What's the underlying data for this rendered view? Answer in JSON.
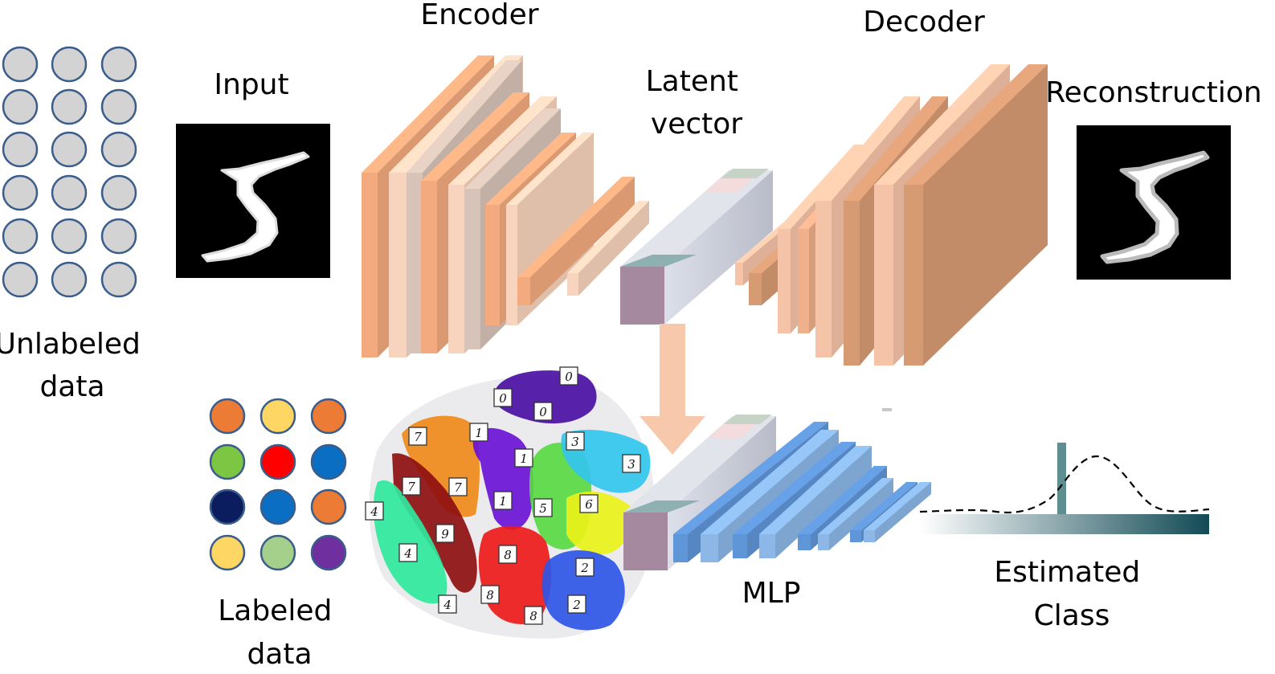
{
  "labels": {
    "unlabeled_data": [
      "Unlabeled",
      "data"
    ],
    "input": "Input",
    "encoder": "Encoder",
    "latent_vector": [
      "Latent",
      "vector"
    ],
    "decoder": "Decoder",
    "reconstruction": "Reconstruction",
    "labeled_data": [
      "Labeled",
      "data"
    ],
    "mlp": "MLP",
    "estimated_class": [
      "Estimated",
      "Class"
    ]
  },
  "unlabeled_dot_color": "#d3d3d3",
  "labeled_dot_colors": [
    [
      "#ec7b36",
      "#fdd663",
      "#ec7b36"
    ],
    [
      "#7dc643",
      "#ff0000",
      "#0a6fc2"
    ],
    [
      "#0b1d5f",
      "#0a6fc2",
      "#ec7b36"
    ],
    [
      "#fdd663",
      "#a5d08b",
      "#6f2f9f"
    ]
  ],
  "tsne_clusters": [
    {
      "digit": "0",
      "color": "#4b0fa3"
    },
    {
      "digit": "1",
      "color": "#6a12d6"
    },
    {
      "digit": "2",
      "color": "#2e56e6"
    },
    {
      "digit": "3",
      "color": "#33c6ee"
    },
    {
      "digit": "4",
      "color": "#2fe89d"
    },
    {
      "digit": "5",
      "color": "#59d943"
    },
    {
      "digit": "6",
      "color": "#e9f218"
    },
    {
      "digit": "7",
      "color": "#f08a1a"
    },
    {
      "digit": "8",
      "color": "#ee1a1a"
    },
    {
      "digit": "9",
      "color": "#8e0f10"
    }
  ],
  "colors": {
    "encoder_orange": "#f2aa7e",
    "encoder_light": "#f8d3bd",
    "latent_purple": "#a58a9f",
    "latent_gray": "#c9ccd6",
    "mlp_blue": "#5f96d7",
    "mlp_light": "#8cb7e6",
    "arrow": "#f8c8ac",
    "class_bar": "#5e8e8f",
    "class_gradient_end": "#124a55"
  }
}
